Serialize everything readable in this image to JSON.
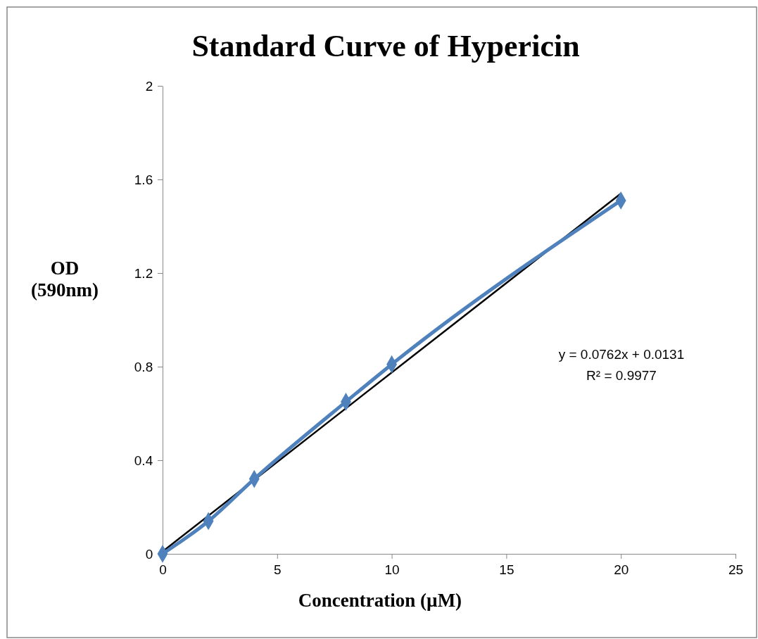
{
  "chart_data": {
    "type": "line",
    "title": "Standard Curve of Hypericin",
    "xlabel": "Concentration (µM)",
    "ylabel": "OD (590nm)",
    "x": [
      0,
      2,
      4,
      8,
      10,
      20
    ],
    "series": [
      {
        "color": "#4f81bd",
        "values": [
          0,
          0.14,
          0.32,
          0.65,
          0.81,
          1.51
        ],
        "marker": "diamond"
      },
      {
        "type": "line",
        "color": "#000000",
        "x": [
          0,
          20
        ],
        "values": [
          0.01,
          1.54
        ],
        "marker": "none"
      }
    ],
    "xlim": [
      0,
      25
    ],
    "xticks": [
      0,
      5,
      10,
      15,
      20,
      25
    ],
    "ylim": [
      0,
      2
    ],
    "yticks": [
      0,
      0.4,
      0.8,
      1.2,
      1.6,
      2
    ],
    "grid": false,
    "annotations": [
      "y = 0.0762x + 0.0131",
      "R² = 0.9977"
    ]
  }
}
